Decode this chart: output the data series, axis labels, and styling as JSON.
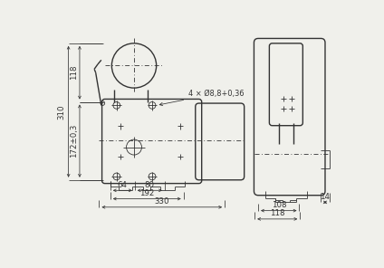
{
  "bg_color": "#f0f0eb",
  "lc": "#333333",
  "lw": 1.0,
  "tlw": 0.6,
  "dlw": 0.55,
  "dfs": 6.2,
  "annotations": {
    "hole_label": "4 × Ø8,8+0,36",
    "dim_310": "310",
    "dim_118_left": "118",
    "dim_172": "172±0,3",
    "dim_64": "64",
    "dim_80": "80",
    "dim_192": "192",
    "dim_330": "330",
    "dim_14": "14",
    "dim_108": "108",
    "dim_118_right": "118"
  }
}
